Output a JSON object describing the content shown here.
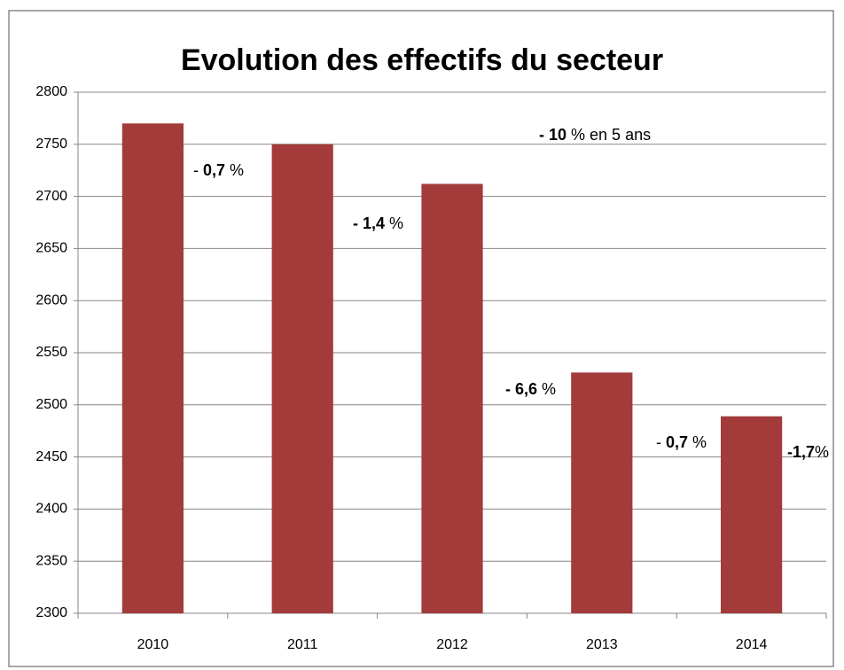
{
  "chart_data": {
    "type": "bar",
    "title": "Evolution des effectifs du secteur",
    "categories": [
      "2010",
      "2011",
      "2012",
      "2013",
      "2014"
    ],
    "values": [
      2770,
      2750,
      2712,
      2531,
      2489
    ],
    "color": "#a33b3a",
    "ylim": [
      2300,
      2800
    ],
    "yticks": [
      2300,
      2350,
      2400,
      2450,
      2500,
      2550,
      2600,
      2650,
      2700,
      2750,
      2800
    ],
    "grid": true,
    "annotations": [
      {
        "parts": [
          {
            "text": "- ",
            "bold": false
          },
          {
            "text": "0,7",
            "bold": true
          },
          {
            "text": " %",
            "bold": false
          }
        ]
      },
      {
        "parts": [
          {
            "text": "- 1,4",
            "bold": true
          },
          {
            "text": " %",
            "bold": false
          }
        ]
      },
      {
        "parts": [
          {
            "text": "- 6,6",
            "bold": true
          },
          {
            "text": " %",
            "bold": false
          }
        ]
      },
      {
        "parts": [
          {
            "text": "- ",
            "bold": false
          },
          {
            "text": "0,7",
            "bold": true
          },
          {
            "text": " %",
            "bold": false
          }
        ]
      },
      {
        "parts": [
          {
            "text": "-1,7",
            "bold": true
          },
          {
            "text": "%",
            "bold": false
          }
        ]
      },
      {
        "parts": [
          {
            "text": "- 10",
            "bold": true
          },
          {
            "text": " % en 5 ans",
            "bold": false
          }
        ]
      }
    ]
  }
}
